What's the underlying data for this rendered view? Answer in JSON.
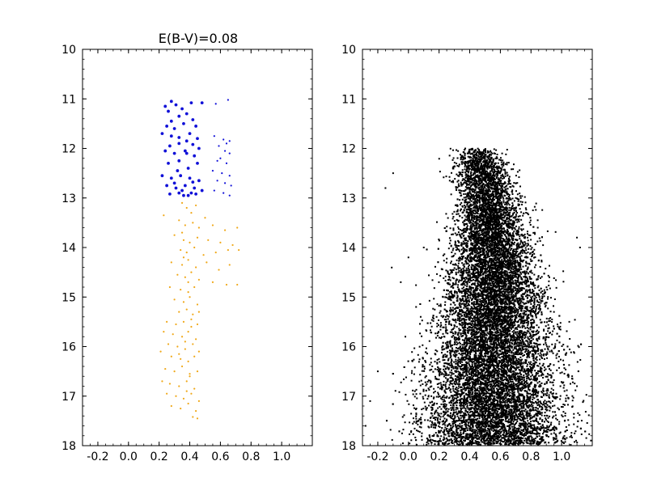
{
  "chart_data": [
    {
      "type": "scatter",
      "title": "E(B-V)=0.08",
      "xlabel": "",
      "ylabel": "",
      "xlim": [
        -0.3,
        1.2
      ],
      "ylim": [
        18,
        10
      ],
      "y_inverted": true,
      "grid": false,
      "xticks": [
        "-0.2",
        "0.0",
        "0.2",
        "0.4",
        "0.6",
        "0.8",
        "1.0"
      ],
      "xtick_values": [
        -0.2,
        0.0,
        0.2,
        0.4,
        0.6,
        0.8,
        1.0
      ],
      "yticks": [
        "10",
        "11",
        "12",
        "13",
        "14",
        "15",
        "16",
        "17",
        "18"
      ],
      "ytick_values": [
        10,
        11,
        12,
        13,
        14,
        15,
        16,
        17,
        18
      ],
      "series": [
        {
          "color": "#1010d8",
          "marker": "dot-large",
          "points": [
            [
              0.24,
              11.15
            ],
            [
              0.28,
              11.05
            ],
            [
              0.31,
              11.12
            ],
            [
              0.26,
              11.25
            ],
            [
              0.35,
              11.2
            ],
            [
              0.41,
              11.08
            ],
            [
              0.48,
              11.08
            ],
            [
              0.33,
              11.35
            ],
            [
              0.38,
              11.3
            ],
            [
              0.42,
              11.42
            ],
            [
              0.25,
              11.55
            ],
            [
              0.3,
              11.6
            ],
            [
              0.36,
              11.5
            ],
            [
              0.44,
              11.55
            ],
            [
              0.22,
              11.7
            ],
            [
              0.28,
              11.75
            ],
            [
              0.33,
              11.78
            ],
            [
              0.4,
              11.7
            ],
            [
              0.45,
              11.8
            ],
            [
              0.27,
              11.95
            ],
            [
              0.33,
              11.9
            ],
            [
              0.38,
              11.85
            ],
            [
              0.42,
              11.92
            ],
            [
              0.24,
              12.05
            ],
            [
              0.3,
              12.1
            ],
            [
              0.37,
              12.05
            ],
            [
              0.43,
              12.15
            ],
            [
              0.26,
              12.3
            ],
            [
              0.33,
              12.25
            ],
            [
              0.39,
              12.4
            ],
            [
              0.45,
              12.3
            ],
            [
              0.22,
              12.55
            ],
            [
              0.28,
              12.6
            ],
            [
              0.34,
              12.55
            ],
            [
              0.4,
              12.6
            ],
            [
              0.46,
              12.65
            ],
            [
              0.25,
              12.75
            ],
            [
              0.31,
              12.8
            ],
            [
              0.37,
              12.75
            ],
            [
              0.43,
              12.8
            ],
            [
              0.48,
              12.85
            ],
            [
              0.27,
              12.92
            ],
            [
              0.33,
              12.9
            ],
            [
              0.39,
              12.95
            ],
            [
              0.44,
              12.92
            ],
            [
              0.35,
              12.85
            ],
            [
              0.41,
              12.9
            ],
            [
              0.36,
              12.95
            ],
            [
              0.3,
              12.7
            ],
            [
              0.42,
              12.68
            ],
            [
              0.38,
              12.1
            ],
            [
              0.28,
              11.45
            ],
            [
              0.46,
              12.0
            ],
            [
              0.32,
              12.45
            ]
          ]
        },
        {
          "color": "#1010d8",
          "marker": "dot-small",
          "points": [
            [
              0.57,
              11.1
            ],
            [
              0.65,
              11.02
            ],
            [
              0.56,
              11.75
            ],
            [
              0.62,
              11.82
            ],
            [
              0.66,
              11.85
            ],
            [
              0.59,
              11.95
            ],
            [
              0.63,
              12.05
            ],
            [
              0.66,
              12.1
            ],
            [
              0.58,
              12.25
            ],
            [
              0.64,
              12.3
            ],
            [
              0.55,
              12.45
            ],
            [
              0.61,
              12.5
            ],
            [
              0.66,
              12.55
            ],
            [
              0.58,
              12.65
            ],
            [
              0.63,
              12.7
            ],
            [
              0.67,
              12.75
            ],
            [
              0.56,
              12.85
            ],
            [
              0.62,
              12.9
            ],
            [
              0.66,
              12.95
            ],
            [
              0.6,
              12.2
            ],
            [
              0.64,
              11.9
            ]
          ]
        },
        {
          "color": "#f0a818",
          "marker": "dot-small",
          "points": [
            [
              0.23,
              13.35
            ],
            [
              0.35,
              13.1
            ],
            [
              0.38,
              13.2
            ],
            [
              0.41,
              13.3
            ],
            [
              0.44,
              13.15
            ],
            [
              0.33,
              13.45
            ],
            [
              0.37,
              13.55
            ],
            [
              0.42,
              13.5
            ],
            [
              0.46,
              13.6
            ],
            [
              0.5,
              13.4
            ],
            [
              0.55,
              13.55
            ],
            [
              0.63,
              13.65
            ],
            [
              0.71,
              13.6
            ],
            [
              0.3,
              13.75
            ],
            [
              0.36,
              13.85
            ],
            [
              0.4,
              13.9
            ],
            [
              0.45,
              13.8
            ],
            [
              0.52,
              13.85
            ],
            [
              0.6,
              13.9
            ],
            [
              0.68,
              13.95
            ],
            [
              0.34,
              14.05
            ],
            [
              0.38,
              14.1
            ],
            [
              0.43,
              14.0
            ],
            [
              0.49,
              14.15
            ],
            [
              0.57,
              14.1
            ],
            [
              0.65,
              14.05
            ],
            [
              0.72,
              14.05
            ],
            [
              0.28,
              14.3
            ],
            [
              0.35,
              14.35
            ],
            [
              0.39,
              14.25
            ],
            [
              0.44,
              14.4
            ],
            [
              0.51,
              14.3
            ],
            [
              0.59,
              14.45
            ],
            [
              0.66,
              14.35
            ],
            [
              0.32,
              14.55
            ],
            [
              0.37,
              14.6
            ],
            [
              0.41,
              14.5
            ],
            [
              0.46,
              14.65
            ],
            [
              0.55,
              14.7
            ],
            [
              0.64,
              14.75
            ],
            [
              0.71,
              14.75
            ],
            [
              0.27,
              14.8
            ],
            [
              0.34,
              14.85
            ],
            [
              0.39,
              14.9
            ],
            [
              0.43,
              14.8
            ],
            [
              0.3,
              15.05
            ],
            [
              0.36,
              15.1
            ],
            [
              0.4,
              15.0
            ],
            [
              0.45,
              15.15
            ],
            [
              0.33,
              15.3
            ],
            [
              0.38,
              15.25
            ],
            [
              0.42,
              15.35
            ],
            [
              0.46,
              15.3
            ],
            [
              0.25,
              15.5
            ],
            [
              0.31,
              15.55
            ],
            [
              0.36,
              15.5
            ],
            [
              0.41,
              15.6
            ],
            [
              0.45,
              15.55
            ],
            [
              0.23,
              15.7
            ],
            [
              0.29,
              15.75
            ],
            [
              0.35,
              15.8
            ],
            [
              0.39,
              15.7
            ],
            [
              0.44,
              15.85
            ],
            [
              0.26,
              15.95
            ],
            [
              0.32,
              16.0
            ],
            [
              0.37,
              16.05
            ],
            [
              0.42,
              15.95
            ],
            [
              0.46,
              16.1
            ],
            [
              0.21,
              16.1
            ],
            [
              0.28,
              16.2
            ],
            [
              0.34,
              16.25
            ],
            [
              0.39,
              16.3
            ],
            [
              0.43,
              16.2
            ],
            [
              0.24,
              16.45
            ],
            [
              0.3,
              16.5
            ],
            [
              0.35,
              16.4
            ],
            [
              0.4,
              16.55
            ],
            [
              0.45,
              16.5
            ],
            [
              0.22,
              16.7
            ],
            [
              0.27,
              16.75
            ],
            [
              0.33,
              16.8
            ],
            [
              0.38,
              16.7
            ],
            [
              0.43,
              16.85
            ],
            [
              0.25,
              16.95
            ],
            [
              0.31,
              17.0
            ],
            [
              0.36,
              17.05
            ],
            [
              0.41,
              16.95
            ],
            [
              0.46,
              17.1
            ],
            [
              0.28,
              17.2
            ],
            [
              0.34,
              17.25
            ],
            [
              0.39,
              17.15
            ],
            [
              0.44,
              17.3
            ],
            [
              0.42,
              17.42
            ],
            [
              0.45,
              17.45
            ],
            [
              0.35,
              13.7
            ],
            [
              0.39,
              14.7
            ],
            [
              0.37,
              15.9
            ],
            [
              0.4,
              16.6
            ],
            [
              0.33,
              16.15
            ],
            [
              0.36,
              14.2
            ],
            [
              0.41,
              15.45
            ],
            [
              0.38,
              16.9
            ]
          ]
        }
      ]
    },
    {
      "type": "scatter",
      "title": "",
      "xlabel": "",
      "ylabel": "",
      "xlim": [
        -0.3,
        1.2
      ],
      "ylim": [
        18,
        10
      ],
      "y_inverted": true,
      "grid": false,
      "xticks": [
        "-0.2",
        "0.0",
        "0.2",
        "0.4",
        "0.6",
        "0.8",
        "1.0"
      ],
      "xtick_values": [
        -0.2,
        0.0,
        0.2,
        0.4,
        0.6,
        0.8,
        1.0
      ],
      "yticks": [
        "10",
        "11",
        "12",
        "13",
        "14",
        "15",
        "16",
        "17",
        "18"
      ],
      "ytick_values": [
        10,
        11,
        12,
        13,
        14,
        15,
        16,
        17,
        18
      ],
      "series": [
        {
          "color": "#000000",
          "marker": "dense-field",
          "description_ridge": [
            [
              12.0,
              0.45
            ],
            [
              13.0,
              0.52
            ],
            [
              14.0,
              0.55
            ],
            [
              15.0,
              0.55
            ],
            [
              16.0,
              0.56
            ],
            [
              17.0,
              0.55
            ],
            [
              18.0,
              0.55
            ]
          ],
          "points": [
            [
              -0.1,
              12.5
            ],
            [
              -0.15,
              12.8
            ],
            [
              0.0,
              14.2
            ],
            [
              -0.05,
              14.7
            ],
            [
              0.05,
              15.2
            ],
            [
              -0.02,
              15.8
            ],
            [
              -0.2,
              16.5
            ],
            [
              -0.25,
              17.1
            ],
            [
              1.1,
              13.8
            ],
            [
              1.12,
              14.0
            ],
            [
              1.05,
              15.5
            ],
            [
              1.1,
              16.8
            ],
            [
              0.98,
              16.3
            ],
            [
              1.02,
              17.5
            ],
            [
              -0.28,
              17.6
            ],
            [
              0.1,
              14.0
            ],
            [
              0.08,
              15.4
            ],
            [
              0.92,
              14.6
            ],
            [
              0.95,
              15.3
            ]
          ]
        }
      ]
    }
  ]
}
